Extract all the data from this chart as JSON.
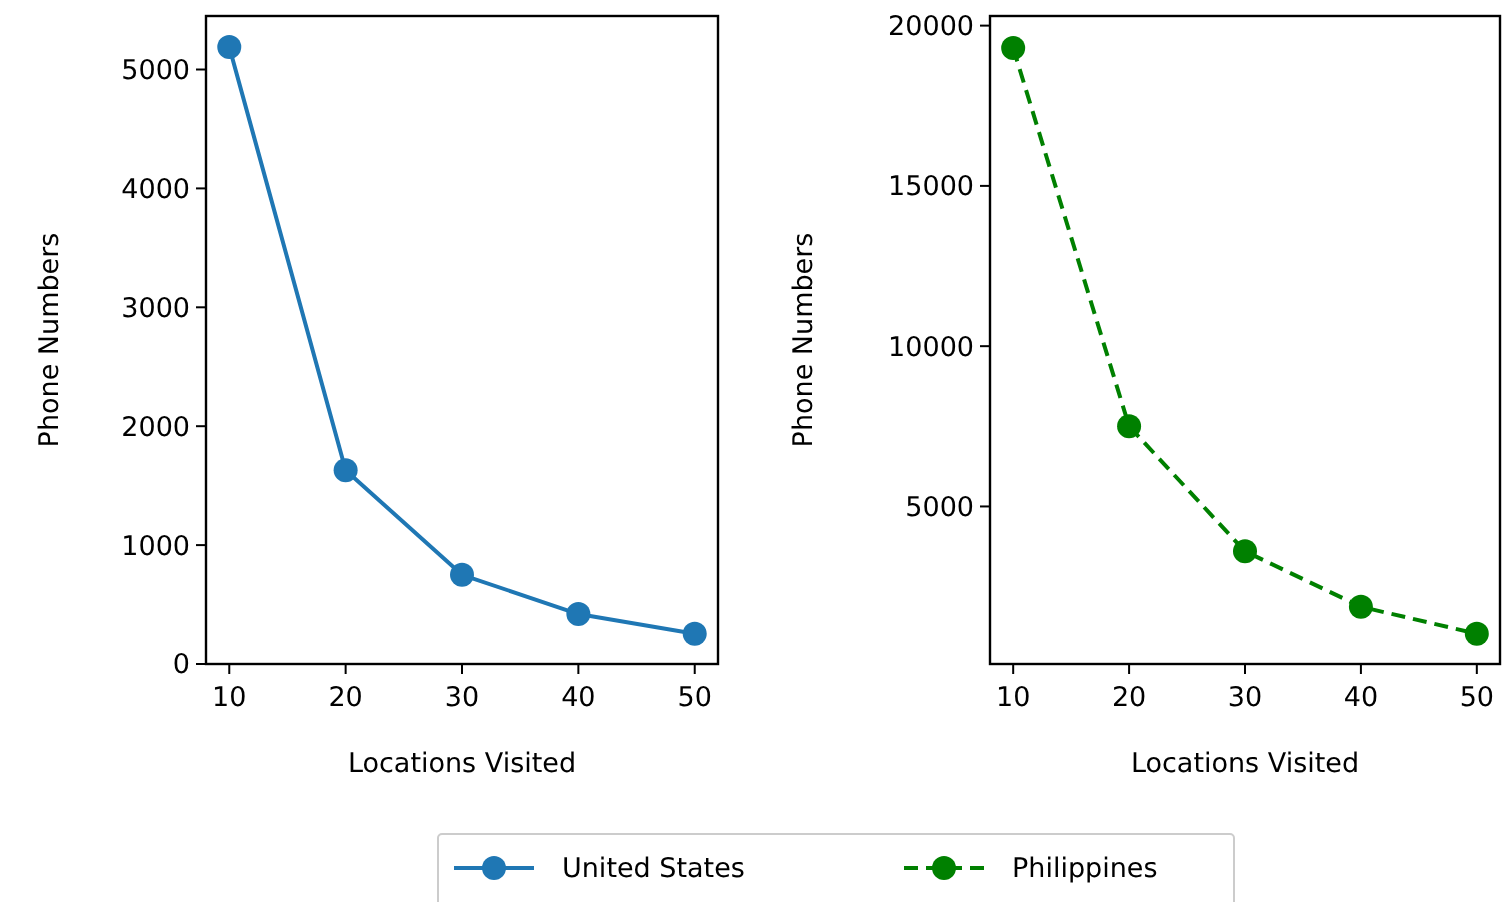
{
  "chart_data": [
    {
      "type": "line",
      "xlabel": "Locations Visited",
      "ylabel": "Phone Numbers",
      "x": [
        10,
        20,
        30,
        40,
        50
      ],
      "xlim": [
        8,
        52
      ],
      "xticks": [
        10,
        20,
        30,
        40,
        50
      ],
      "ylim": [
        0,
        5450
      ],
      "yticks": [
        0,
        1000,
        2000,
        3000,
        4000,
        5000
      ],
      "marker": "circle",
      "line_style": "solid",
      "legend": "bottom",
      "grid": false,
      "series": [
        {
          "name": "United States",
          "color": "#1f77b4",
          "values": [
            5190,
            1630,
            750,
            420,
            255
          ]
        }
      ]
    },
    {
      "type": "line",
      "xlabel": "Locations Visited",
      "ylabel": "Phone Numbers",
      "x": [
        10,
        20,
        30,
        40,
        50
      ],
      "xlim": [
        8,
        52
      ],
      "xticks": [
        10,
        20,
        30,
        40,
        50
      ],
      "ylim": [
        85,
        20300
      ],
      "yticks": [
        5000,
        10000,
        15000,
        20000
      ],
      "marker": "circle",
      "line_style": "dashed",
      "legend": "bottom",
      "grid": false,
      "series": [
        {
          "name": "Philippines",
          "color": "#008000",
          "values": [
            19300,
            7500,
            3600,
            1870,
            1030
          ]
        }
      ]
    }
  ]
}
